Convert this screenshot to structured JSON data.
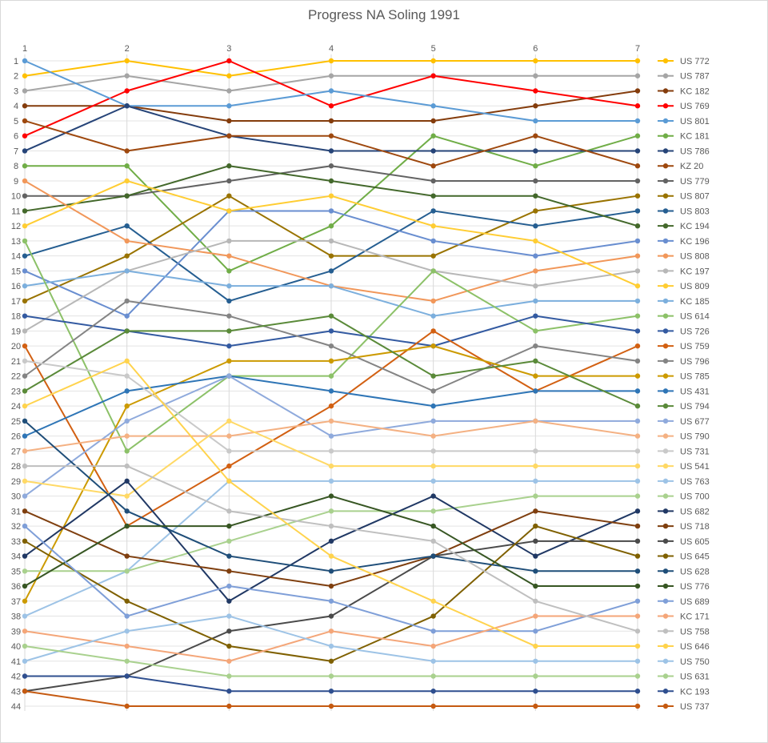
{
  "chart_data": {
    "type": "line",
    "title": "Progress NA Soling 1991",
    "x": [
      1,
      2,
      3,
      4,
      5,
      6,
      7
    ],
    "y_inverted": true,
    "ylim": [
      1,
      44
    ],
    "y_ticks": [
      1,
      2,
      3,
      4,
      5,
      6,
      7,
      8,
      9,
      10,
      11,
      12,
      13,
      14,
      15,
      16,
      17,
      18,
      19,
      20,
      21,
      22,
      23,
      24,
      25,
      26,
      27,
      28,
      29,
      30,
      31,
      32,
      33,
      34,
      35,
      36,
      37,
      38,
      39,
      40,
      41,
      42,
      43,
      44
    ],
    "grid": true,
    "legend_position": "right",
    "series": [
      {
        "name": "US 772",
        "color": "#FFC000",
        "values": [
          2,
          1,
          2,
          1,
          1,
          1,
          1
        ]
      },
      {
        "name": "US 787",
        "color": "#A5A5A5",
        "values": [
          3,
          2,
          3,
          2,
          2,
          2,
          2
        ]
      },
      {
        "name": "KC 182",
        "color": "#843C0C",
        "values": [
          4,
          4,
          5,
          5,
          5,
          4,
          3
        ]
      },
      {
        "name": "US 769",
        "color": "#FF0000",
        "values": [
          6,
          3,
          1,
          4,
          2,
          3,
          4
        ]
      },
      {
        "name": "US 801",
        "color": "#5B9BD5",
        "values": [
          1,
          4,
          4,
          3,
          4,
          5,
          5
        ]
      },
      {
        "name": "KC 181",
        "color": "#70AD47",
        "values": [
          8,
          8,
          15,
          12,
          6,
          8,
          6
        ]
      },
      {
        "name": "US 786",
        "color": "#264478",
        "values": [
          7,
          4,
          6,
          7,
          7,
          7,
          7
        ]
      },
      {
        "name": "KZ 20",
        "color": "#9E480E",
        "values": [
          5,
          7,
          6,
          6,
          8,
          6,
          8
        ]
      },
      {
        "name": "US 779",
        "color": "#636363",
        "values": [
          10,
          10,
          9,
          8,
          9,
          9,
          9
        ]
      },
      {
        "name": "US 807",
        "color": "#997300",
        "values": [
          17,
          14,
          10,
          14,
          14,
          11,
          10
        ]
      },
      {
        "name": "US 803",
        "color": "#255E91",
        "values": [
          14,
          12,
          17,
          15,
          11,
          12,
          11
        ]
      },
      {
        "name": "KC 194",
        "color": "#43682B",
        "values": [
          11,
          10,
          8,
          9,
          10,
          10,
          12
        ]
      },
      {
        "name": "KC 196",
        "color": "#698ED0",
        "values": [
          15,
          18,
          11,
          11,
          13,
          14,
          13
        ]
      },
      {
        "name": "US 808",
        "color": "#F1975A",
        "values": [
          9,
          13,
          14,
          16,
          17,
          15,
          14
        ]
      },
      {
        "name": "KC 197",
        "color": "#B7B7B7",
        "values": [
          19,
          15,
          13,
          13,
          15,
          16,
          15
        ]
      },
      {
        "name": "US 809",
        "color": "#FFCD33",
        "values": [
          12,
          9,
          11,
          10,
          12,
          13,
          16
        ]
      },
      {
        "name": "KC 185",
        "color": "#7CAFDD",
        "values": [
          16,
          15,
          16,
          16,
          18,
          17,
          17
        ]
      },
      {
        "name": "US 614",
        "color": "#8CC168",
        "values": [
          13,
          27,
          22,
          22,
          15,
          19,
          18
        ]
      },
      {
        "name": "US 726",
        "color": "#335AA1",
        "values": [
          18,
          19,
          20,
          19,
          20,
          18,
          19
        ]
      },
      {
        "name": "US 759",
        "color": "#D26012",
        "values": [
          20,
          32,
          28,
          24,
          19,
          23,
          20
        ]
      },
      {
        "name": "US 796",
        "color": "#848484",
        "values": [
          22,
          17,
          18,
          20,
          23,
          20,
          21
        ]
      },
      {
        "name": "US 785",
        "color": "#CC9A00",
        "values": [
          37,
          24,
          21,
          21,
          20,
          22,
          22
        ]
      },
      {
        "name": "US 431",
        "color": "#2E75B6",
        "values": [
          26,
          23,
          22,
          23,
          24,
          23,
          23
        ]
      },
      {
        "name": "US 794",
        "color": "#5A8A39",
        "values": [
          23,
          19,
          19,
          18,
          22,
          21,
          24
        ]
      },
      {
        "name": "US 677",
        "color": "#8FAADC",
        "values": [
          30,
          25,
          22,
          26,
          25,
          25,
          25
        ]
      },
      {
        "name": "US 790",
        "color": "#F4B183",
        "values": [
          27,
          26,
          26,
          25,
          26,
          25,
          26
        ]
      },
      {
        "name": "US 731",
        "color": "#C9C9C9",
        "values": [
          21,
          22,
          27,
          27,
          27,
          27,
          27
        ]
      },
      {
        "name": "US 541",
        "color": "#FFD966",
        "values": [
          29,
          30,
          25,
          28,
          28,
          28,
          28
        ]
      },
      {
        "name": "US 763",
        "color": "#9DC3E6",
        "values": [
          38,
          35,
          29,
          29,
          29,
          29,
          29
        ]
      },
      {
        "name": "US 700",
        "color": "#A9D18E",
        "values": [
          35,
          35,
          33,
          31,
          31,
          30,
          30
        ]
      },
      {
        "name": "US 682",
        "color": "#203864",
        "values": [
          34,
          29,
          37,
          33,
          30,
          34,
          31
        ]
      },
      {
        "name": "US 718",
        "color": "#7F3F0F",
        "values": [
          31,
          34,
          35,
          36,
          34,
          31,
          32
        ]
      },
      {
        "name": "US 605",
        "color": "#4A4A4A",
        "values": [
          43,
          42,
          39,
          38,
          34,
          33,
          33
        ]
      },
      {
        "name": "US 645",
        "color": "#7F6000",
        "values": [
          33,
          37,
          40,
          41,
          38,
          32,
          34
        ]
      },
      {
        "name": "US 628",
        "color": "#1F4E79",
        "values": [
          25,
          31,
          34,
          35,
          34,
          35,
          35
        ]
      },
      {
        "name": "US 776",
        "color": "#375623",
        "values": [
          36,
          32,
          32,
          30,
          32,
          36,
          36
        ]
      },
      {
        "name": "US 689",
        "color": "#7F9FD8",
        "values": [
          32,
          38,
          36,
          37,
          39,
          39,
          37
        ]
      },
      {
        "name": "KC 171",
        "color": "#F4A679",
        "values": [
          39,
          40,
          41,
          39,
          40,
          38,
          38
        ]
      },
      {
        "name": "US 758",
        "color": "#BFBFBF",
        "values": [
          28,
          28,
          31,
          32,
          33,
          37,
          39
        ]
      },
      {
        "name": "US 646",
        "color": "#FFD34D",
        "values": [
          24,
          21,
          29,
          34,
          37,
          40,
          40
        ]
      },
      {
        "name": "US 750",
        "color": "#9DC3E6",
        "values": [
          41,
          39,
          38,
          40,
          41,
          41,
          41
        ]
      },
      {
        "name": "US 631",
        "color": "#A9D18E",
        "values": [
          40,
          41,
          42,
          42,
          42,
          42,
          42
        ]
      },
      {
        "name": "KC 193",
        "color": "#2F4F8F",
        "values": [
          42,
          42,
          43,
          43,
          43,
          43,
          43
        ]
      },
      {
        "name": "US 737",
        "color": "#C55A11",
        "values": [
          43,
          44,
          44,
          44,
          44,
          44,
          44
        ]
      }
    ]
  }
}
